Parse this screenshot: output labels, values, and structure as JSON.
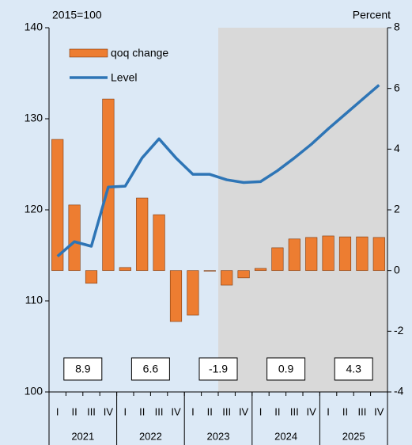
{
  "chart_data": {
    "type": "bar-line",
    "annotations": [
      "2015=100",
      "Percent"
    ],
    "categories": [
      "I",
      "II",
      "III",
      "IV",
      "I",
      "II",
      "III",
      "IV",
      "I",
      "II",
      "III",
      "IV",
      "I",
      "II",
      "III",
      "IV",
      "I",
      "II",
      "III",
      "IV"
    ],
    "years": [
      "2021",
      "2022",
      "2023",
      "2024",
      "2025"
    ],
    "annual_values": [
      8.9,
      6.6,
      -1.9,
      0.9,
      4.3
    ],
    "series": [
      {
        "name": "qoq change",
        "color": "#ed7d31",
        "axis": "y2",
        "values": [
          4.32,
          2.16,
          -0.42,
          5.65,
          0.1,
          2.39,
          1.84,
          -1.68,
          -1.47,
          -0.02,
          -0.48,
          -0.24,
          0.07,
          0.75,
          1.04,
          1.09,
          1.14,
          1.11,
          1.11,
          1.09
        ]
      },
      {
        "name": "Level",
        "color": "#2e75b6",
        "axis": "y",
        "values": [
          114.9,
          116.5,
          116.0,
          122.5,
          122.6,
          125.7,
          127.8,
          125.7,
          123.9,
          123.9,
          123.3,
          123.0,
          123.1,
          124.3,
          125.7,
          127.2,
          128.9,
          130.5,
          132.1,
          133.7
        ]
      }
    ],
    "ylim": [
      100,
      140
    ],
    "yticks": [
      100,
      110,
      120,
      130,
      140
    ],
    "y2lim": [
      -4,
      8
    ],
    "y2ticks": [
      -4,
      -2,
      0,
      2,
      4,
      6,
      8
    ]
  }
}
